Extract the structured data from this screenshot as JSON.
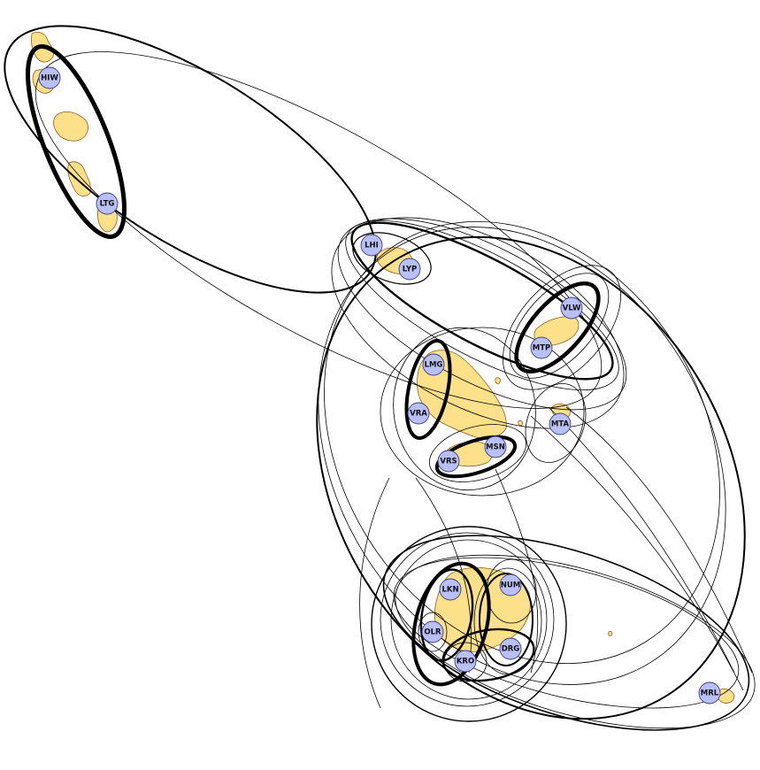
{
  "colors": {
    "island_fill": "#fde18a",
    "island_stroke": "#9a5a1a",
    "node_fill": "#b9bff7",
    "node_stroke": "#3a3f8a",
    "line": "#000000",
    "background": "#ffffff"
  },
  "nodes": [
    {
      "id": "hiw",
      "label": "HIW"
    },
    {
      "id": "ltg",
      "label": "LTG"
    },
    {
      "id": "lhi",
      "label": "LHI"
    },
    {
      "id": "lyp",
      "label": "LYP"
    },
    {
      "id": "vlw",
      "label": "VLW"
    },
    {
      "id": "mtp",
      "label": "MTP"
    },
    {
      "id": "lmg",
      "label": "LMG"
    },
    {
      "id": "vra",
      "label": "VRA"
    },
    {
      "id": "mta",
      "label": "MTA"
    },
    {
      "id": "msn",
      "label": "MSN"
    },
    {
      "id": "vrs",
      "label": "VRS"
    },
    {
      "id": "lkn",
      "label": "LKN"
    },
    {
      "id": "num",
      "label": "NUM"
    },
    {
      "id": "olr",
      "label": "OLR"
    },
    {
      "id": "drg",
      "label": "DRG"
    },
    {
      "id": "kro",
      "label": "KRO"
    },
    {
      "id": "mrl",
      "label": "MRL"
    }
  ]
}
